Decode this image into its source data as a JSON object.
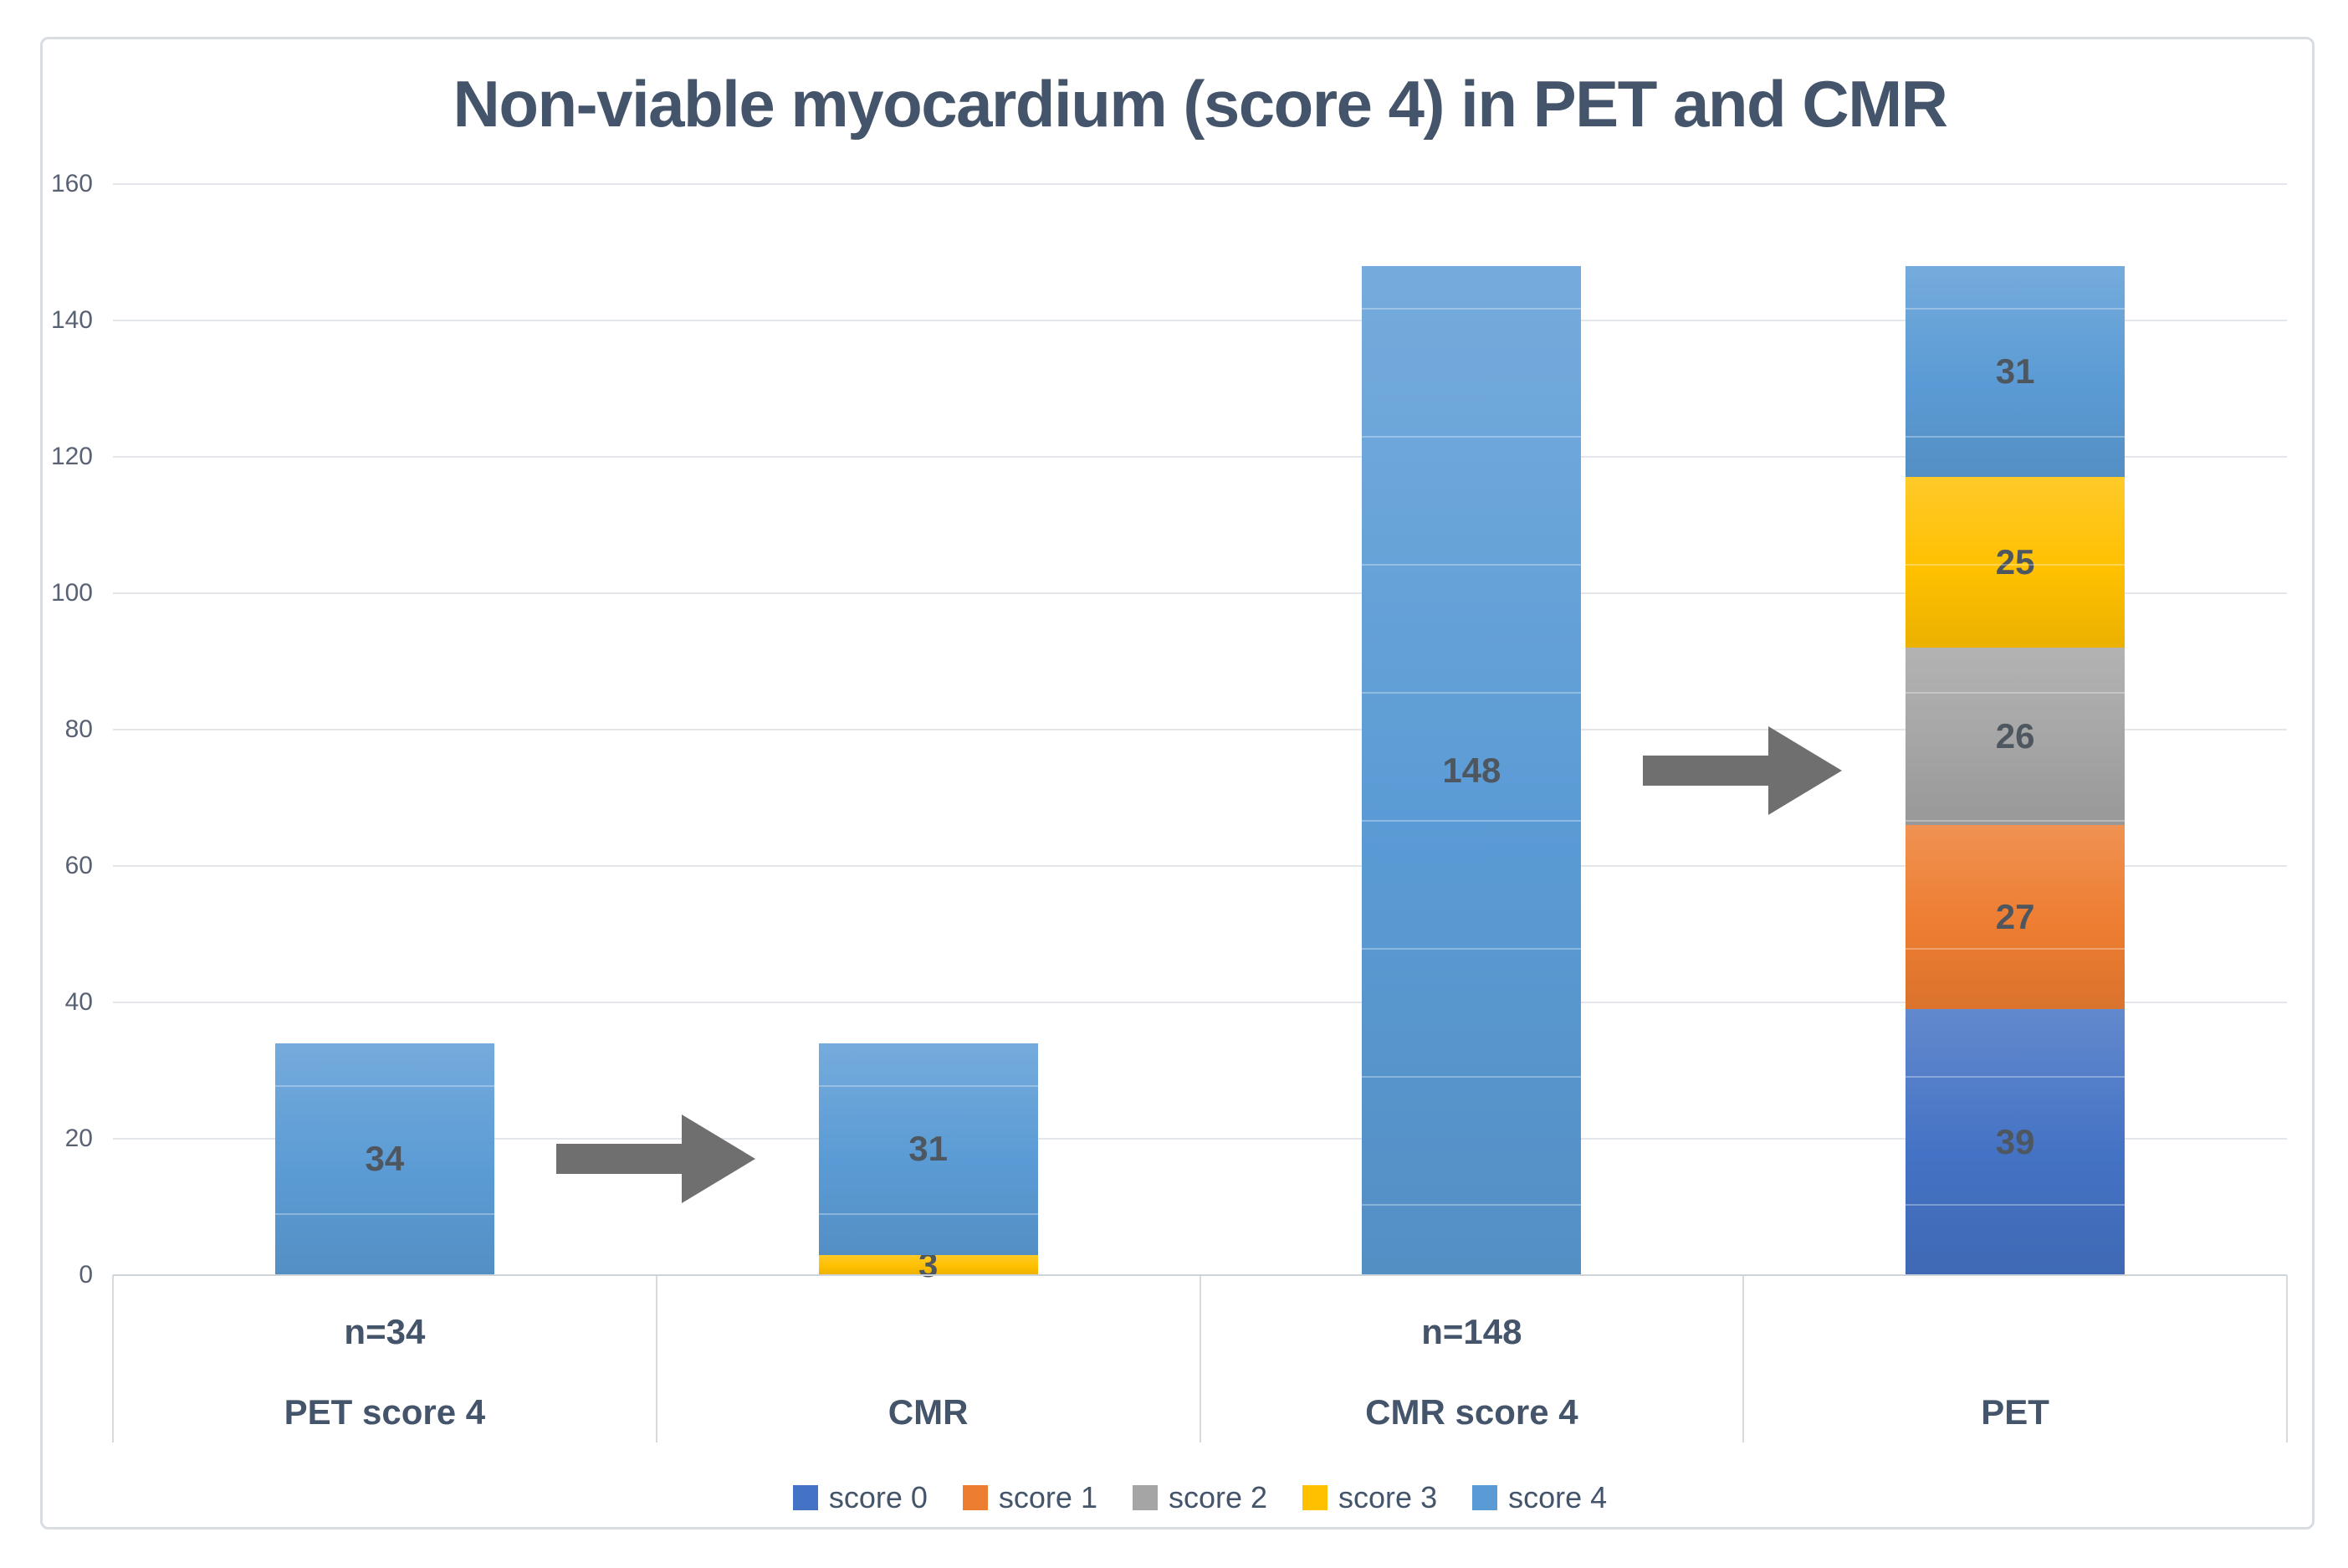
{
  "page": {
    "background": "#ffffff",
    "frame_border_color": "#d9dde1"
  },
  "chart_data": {
    "type": "bar",
    "stacked": true,
    "title": "Non-viable myocardium (score 4) in PET and CMR",
    "title_color": "#44546A",
    "categories": [
      "PET score 4",
      "CMR",
      "CMR score 4",
      "PET"
    ],
    "group_labels": [
      "n=34",
      "",
      "n=148",
      ""
    ],
    "series": [
      {
        "name": "score 0",
        "color": "#4472C4",
        "values": [
          0,
          0,
          0,
          39
        ]
      },
      {
        "name": "score 1",
        "color": "#ED7D31",
        "values": [
          0,
          0,
          0,
          27
        ]
      },
      {
        "name": "score 2",
        "color": "#A5A5A5",
        "values": [
          0,
          0,
          0,
          26
        ]
      },
      {
        "name": "score 3",
        "color": "#FFC000",
        "values": [
          0,
          3,
          0,
          25
        ]
      },
      {
        "name": "score 4",
        "color": "#5B9BD5",
        "values": [
          34,
          31,
          148,
          31
        ]
      }
    ],
    "bar_totals": [
      34,
      34,
      148,
      148
    ],
    "ylim": [
      0,
      160
    ],
    "ytick_step": 20,
    "yticks": [
      0,
      20,
      40,
      60,
      80,
      100,
      120,
      140,
      160
    ],
    "grid": true,
    "gridline_color": "#e3e7eb",
    "axis_line_color": "#ced4da",
    "divider_color": "#d5dade",
    "tick_label_color": "#596273",
    "data_label_color": "#4E5760",
    "category_label_color": "#44546A",
    "legend_position": "bottom",
    "legend_text_color": "#44546A",
    "annotations": [
      {
        "type": "arrow",
        "from_category": "PET score 4",
        "to_category": "CMR",
        "color": "#6F6F6F"
      },
      {
        "type": "arrow",
        "from_category": "CMR score 4",
        "to_category": "PET",
        "color": "#6F6F6F"
      }
    ]
  }
}
